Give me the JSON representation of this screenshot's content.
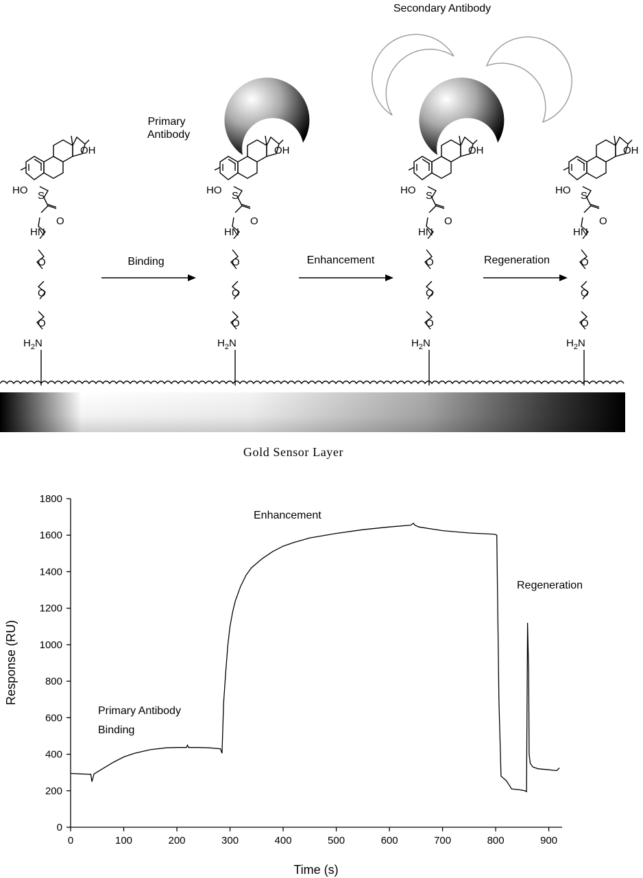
{
  "diagram": {
    "labels": {
      "primary_antibody_line1": "Primary",
      "primary_antibody_line2": "Antibody",
      "secondary_antibody": "Secondary Antibody",
      "binding": "Binding",
      "enhancement": "Enhancement",
      "regeneration": "Regeneration",
      "gold_sensor_layer": "Gold Sensor Layer"
    },
    "molecule": {
      "oh_top": "OH",
      "ho": "HO",
      "s": "S",
      "o_carbonyl": "O",
      "hn": "HN",
      "o": "O",
      "h2n_h": "H",
      "h2n_sub": "2",
      "h2n_n": "N"
    }
  },
  "chart_data": {
    "type": "line",
    "xlabel": "Time (s)",
    "ylabel": "Response (RU)",
    "xlim": [
      0,
      925
    ],
    "ylim": [
      0,
      1800
    ],
    "xticks": [
      0,
      100,
      200,
      300,
      400,
      500,
      600,
      700,
      800,
      900
    ],
    "yticks": [
      0,
      200,
      400,
      600,
      800,
      1000,
      1200,
      1400,
      1600,
      1800
    ],
    "annotations": {
      "primary_line1": "Primary Antibody",
      "primary_line2": "Binding",
      "enhancement": "Enhancement",
      "regeneration": "Regeneration"
    },
    "series": [
      {
        "x": [
          0,
          20,
          38,
          40,
          42,
          44,
          60,
          80,
          100,
          120,
          150,
          180,
          200,
          218,
          220,
          222,
          240,
          260,
          282,
          285,
          288,
          292,
          296,
          300,
          305,
          310,
          320,
          330,
          340,
          360,
          380,
          400,
          420,
          450,
          500,
          550,
          600,
          640,
          645,
          648,
          655,
          700,
          750,
          798,
          802,
          806,
          810,
          820,
          830,
          845,
          855,
          858,
          860,
          862,
          863,
          865,
          870,
          880,
          900,
          915,
          920
        ],
        "y": [
          295,
          292,
          290,
          250,
          270,
          292,
          320,
          355,
          385,
          405,
          425,
          435,
          437,
          437,
          450,
          437,
          437,
          435,
          430,
          405,
          680,
          850,
          1000,
          1100,
          1180,
          1240,
          1320,
          1380,
          1420,
          1470,
          1510,
          1540,
          1560,
          1585,
          1610,
          1630,
          1645,
          1655,
          1665,
          1655,
          1645,
          1625,
          1612,
          1605,
          1600,
          700,
          280,
          255,
          210,
          205,
          200,
          195,
          1120,
          850,
          400,
          350,
          330,
          320,
          315,
          310,
          325
        ]
      }
    ]
  }
}
